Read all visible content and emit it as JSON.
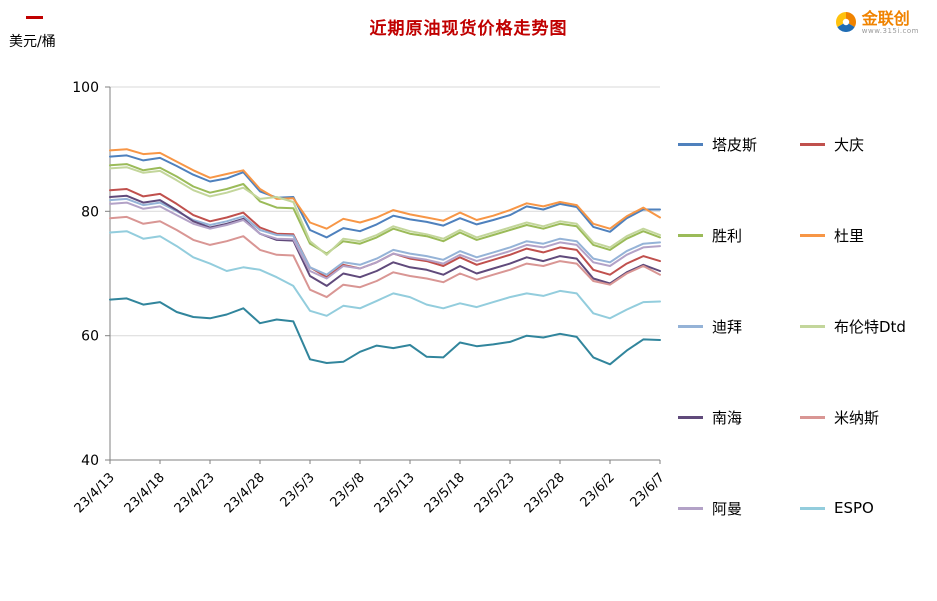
{
  "page": {
    "title": "近期原油现货价格走势图",
    "unit_label": "美元/桶",
    "logo": {
      "name": "金联创",
      "url_text": "www.315i.com"
    }
  },
  "chart_data": {
    "type": "line",
    "title": "近期原油现货价格走势图",
    "ylabel": "美元/桶",
    "ylim": [
      40,
      100
    ],
    "yticks": [
      40,
      60,
      80,
      100
    ],
    "grid": true,
    "legend_position": "right",
    "legend_columns": 2,
    "x_tick_labels": [
      "23/4/13",
      "23/4/18",
      "23/4/23",
      "23/4/28",
      "23/5/3",
      "23/5/8",
      "23/5/13",
      "23/5/18",
      "23/5/23",
      "23/5/28",
      "23/6/2",
      "23/6/7"
    ],
    "points_per_label": 3,
    "series": [
      {
        "name": "塔皮斯",
        "color": "#4F81BD",
        "values": [
          88.8,
          89.0,
          88.2,
          88.6,
          87.3,
          85.9,
          84.8,
          85.3,
          86.3,
          83.2,
          82.2,
          82.3,
          77.0,
          75.8,
          77.3,
          76.8,
          77.9,
          79.3,
          78.7,
          78.3,
          77.7,
          78.9,
          77.9,
          78.6,
          79.4,
          80.8,
          80.3,
          81.2,
          80.7,
          77.5,
          76.7,
          78.9,
          80.3,
          80.3
        ]
      },
      {
        "name": "大庆",
        "color": "#C0504D",
        "values": [
          83.4,
          83.6,
          82.4,
          82.8,
          81.2,
          79.4,
          78.4,
          79.0,
          79.8,
          77.4,
          76.4,
          76.3,
          71.0,
          69.4,
          71.4,
          70.8,
          71.8,
          73.2,
          72.4,
          72.0,
          71.2,
          72.6,
          71.4,
          72.2,
          73.0,
          74.0,
          73.4,
          74.2,
          73.8,
          70.6,
          69.8,
          71.6,
          72.8,
          72.0
        ]
      },
      {
        "name": "胜利",
        "color": "#9BBB59",
        "values": [
          87.4,
          87.6,
          86.6,
          87.0,
          85.6,
          84.0,
          83.0,
          83.6,
          84.4,
          81.6,
          80.6,
          80.5,
          74.8,
          73.2,
          75.2,
          74.8,
          75.8,
          77.2,
          76.4,
          76.0,
          75.2,
          76.6,
          75.4,
          76.2,
          77.0,
          77.8,
          77.2,
          78.0,
          77.6,
          74.6,
          73.8,
          75.6,
          76.8,
          75.8
        ]
      },
      {
        "name": "杜里",
        "color": "#F79646",
        "values": [
          89.8,
          90.0,
          89.2,
          89.4,
          88.0,
          86.6,
          85.4,
          86.0,
          86.6,
          83.6,
          82.0,
          82.1,
          78.2,
          77.2,
          78.8,
          78.2,
          79.0,
          80.2,
          79.5,
          79.0,
          78.5,
          79.8,
          78.6,
          79.3,
          80.2,
          81.3,
          80.8,
          81.5,
          81.0,
          78.0,
          77.2,
          79.2,
          80.6,
          79.0
        ]
      },
      {
        "name": "迪拜",
        "color": "#95B3D7",
        "values": [
          81.8,
          82.0,
          81.0,
          81.4,
          80.0,
          78.6,
          77.8,
          78.4,
          79.2,
          77.0,
          76.2,
          76.1,
          71.0,
          69.8,
          71.8,
          71.4,
          72.4,
          73.8,
          73.2,
          72.8,
          72.2,
          73.6,
          72.6,
          73.4,
          74.2,
          75.2,
          74.8,
          75.6,
          75.2,
          72.4,
          71.8,
          73.6,
          74.8,
          75.0
        ]
      },
      {
        "name": "布伦特Dtd",
        "color": "#C3D69B",
        "values": [
          86.9,
          87.1,
          86.2,
          86.5,
          85.0,
          83.4,
          82.4,
          83.0,
          83.8,
          82.0,
          82.3,
          81.5,
          75.2,
          73.0,
          75.6,
          75.2,
          76.2,
          77.6,
          76.8,
          76.3,
          75.6,
          77.0,
          75.8,
          76.6,
          77.4,
          78.2,
          77.6,
          78.4,
          78.0,
          75.0,
          74.2,
          76.0,
          77.2,
          76.2
        ]
      },
      {
        "name": "南海",
        "color": "#604A7B",
        "values": [
          82.3,
          82.5,
          81.4,
          81.8,
          80.2,
          78.4,
          77.4,
          78.0,
          78.8,
          76.4,
          75.4,
          75.3,
          69.6,
          68.0,
          70.0,
          69.4,
          70.4,
          71.8,
          71.0,
          70.6,
          69.8,
          71.2,
          70.0,
          70.8,
          71.6,
          72.6,
          72.0,
          72.8,
          72.4,
          69.2,
          68.4,
          70.2,
          71.4,
          70.4
        ]
      },
      {
        "name": "米纳斯",
        "color": "#D99694",
        "values": [
          78.9,
          79.1,
          78.0,
          78.4,
          77.0,
          75.4,
          74.6,
          75.2,
          76.0,
          73.8,
          73.0,
          72.9,
          67.4,
          66.2,
          68.2,
          67.8,
          68.8,
          70.2,
          69.6,
          69.2,
          68.6,
          70.0,
          69.0,
          69.8,
          70.6,
          71.6,
          71.2,
          72.0,
          71.6,
          68.8,
          68.2,
          70.0,
          71.2,
          69.8
        ]
      },
      {
        "name": "阿曼",
        "color": "#B3A2C7",
        "values": [
          81.2,
          81.4,
          80.4,
          80.8,
          79.4,
          78.0,
          77.2,
          77.8,
          78.6,
          76.4,
          75.6,
          75.5,
          70.4,
          69.2,
          71.2,
          70.8,
          71.8,
          73.2,
          72.6,
          72.2,
          71.6,
          73.0,
          72.0,
          72.8,
          73.6,
          74.6,
          74.2,
          75.0,
          74.6,
          71.8,
          71.2,
          73.0,
          74.2,
          74.4
        ]
      },
      {
        "name": "ESPO",
        "color": "#93CDDD",
        "values": [
          76.6,
          76.8,
          75.6,
          76.0,
          74.4,
          72.6,
          71.6,
          70.4,
          71.0,
          70.6,
          69.4,
          68.0,
          64.0,
          63.2,
          64.8,
          64.4,
          65.6,
          66.8,
          66.2,
          65.0,
          64.4,
          65.2,
          64.6,
          65.4,
          66.2,
          66.8,
          66.4,
          67.2,
          66.8,
          63.6,
          62.8,
          64.2,
          65.4,
          65.5
        ]
      },
      {
        "name": "",
        "color": "#31859C",
        "values": [
          65.8,
          66.0,
          65.0,
          65.4,
          63.8,
          63.0,
          62.8,
          63.4,
          64.4,
          62.0,
          62.6,
          62.3,
          56.2,
          55.6,
          55.8,
          57.4,
          58.4,
          58.0,
          58.5,
          56.6,
          56.5,
          58.9,
          58.3,
          58.6,
          59.0,
          60.0,
          59.7,
          60.3,
          59.8,
          56.5,
          55.4,
          57.6,
          59.4,
          59.3
        ]
      }
    ]
  }
}
